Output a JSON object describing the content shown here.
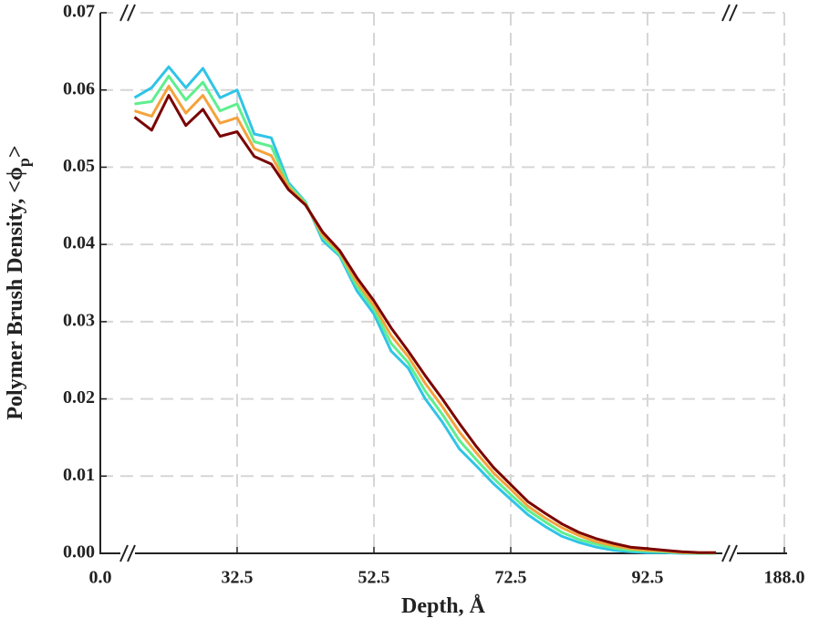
{
  "chart_data": {
    "type": "line",
    "xlabel": "Depth, Å",
    "ylabel": {
      "text": "Polymer Brush Density, <ϕ",
      "subscript": "p",
      "suffix": ">"
    },
    "xsegments": [
      [
        0,
        4
      ],
      [
        16.5,
        104.5
      ],
      [
        180,
        188
      ]
    ],
    "xticks": [
      {
        "value": 0,
        "label": "0.0"
      },
      32.5,
      52.5,
      72.5,
      92.5,
      {
        "value": 188,
        "label": "188.0"
      }
    ],
    "ylim": [
      0,
      0.07
    ],
    "yticks": [
      {
        "value": 0,
        "label": "0.00"
      },
      {
        "value": 0.01,
        "label": "0.01"
      },
      {
        "value": 0.02,
        "label": "0.02"
      },
      {
        "value": 0.03,
        "label": "0.03"
      },
      {
        "value": 0.04,
        "label": "0.04"
      },
      {
        "value": 0.05,
        "label": "0.05"
      },
      {
        "value": 0.06,
        "label": "0.06"
      },
      {
        "value": 0.07,
        "label": "0.07"
      }
    ],
    "grid": true,
    "x": [
      17.5,
      20,
      22.5,
      25,
      27.5,
      30,
      32.5,
      35,
      37.5,
      40,
      42.5,
      45,
      47.5,
      50,
      52.5,
      55,
      57.5,
      60,
      62.5,
      65,
      67.5,
      70,
      72.5,
      75,
      77.5,
      80,
      82.5,
      85,
      87.5,
      90,
      92.5,
      95,
      97.5,
      100,
      102.5
    ],
    "series": [
      {
        "color": "#2fc4e6",
        "values": [
          0.059,
          0.0603,
          0.063,
          0.0603,
          0.0628,
          0.059,
          0.06,
          0.0543,
          0.0538,
          0.048,
          0.0455,
          0.0405,
          0.0385,
          0.034,
          0.031,
          0.0262,
          0.024,
          0.02,
          0.017,
          0.0135,
          0.0113,
          0.009,
          0.007,
          0.005,
          0.0035,
          0.0022,
          0.0014,
          0.0008,
          0.0004,
          0.0002,
          0.0001,
          0.0001,
          0,
          0,
          0
        ]
      },
      {
        "color": "#5eef8e",
        "values": [
          0.0582,
          0.0585,
          0.0618,
          0.0587,
          0.061,
          0.0573,
          0.0582,
          0.0533,
          0.0527,
          0.0477,
          0.0454,
          0.0409,
          0.0387,
          0.0346,
          0.0316,
          0.0272,
          0.0247,
          0.021,
          0.018,
          0.0146,
          0.0121,
          0.0097,
          0.0076,
          0.0056,
          0.0041,
          0.0027,
          0.0018,
          0.0012,
          0.0007,
          0.0004,
          0.0003,
          0.0002,
          0.0001,
          0,
          0
        ]
      },
      {
        "color": "#f5a23c",
        "values": [
          0.0573,
          0.0566,
          0.0605,
          0.057,
          0.0593,
          0.0557,
          0.0564,
          0.0524,
          0.0515,
          0.0474,
          0.0452,
          0.0412,
          0.039,
          0.0351,
          0.0321,
          0.0282,
          0.0255,
          0.022,
          0.019,
          0.0157,
          0.013,
          0.0104,
          0.0083,
          0.0061,
          0.0046,
          0.0033,
          0.0023,
          0.0015,
          0.001,
          0.0006,
          0.0004,
          0.0003,
          0.0001,
          0.0001,
          0.0001
        ]
      },
      {
        "color": "#7a0403",
        "values": [
          0.0565,
          0.0548,
          0.0593,
          0.0554,
          0.0575,
          0.054,
          0.0546,
          0.0514,
          0.0504,
          0.0471,
          0.0451,
          0.0416,
          0.0392,
          0.0357,
          0.0327,
          0.0292,
          0.0262,
          0.023,
          0.02,
          0.0168,
          0.0138,
          0.0111,
          0.0089,
          0.0067,
          0.0052,
          0.0038,
          0.0027,
          0.0019,
          0.0013,
          0.0008,
          0.0006,
          0.0004,
          0.0002,
          0.0001,
          0.0001
        ]
      }
    ]
  }
}
